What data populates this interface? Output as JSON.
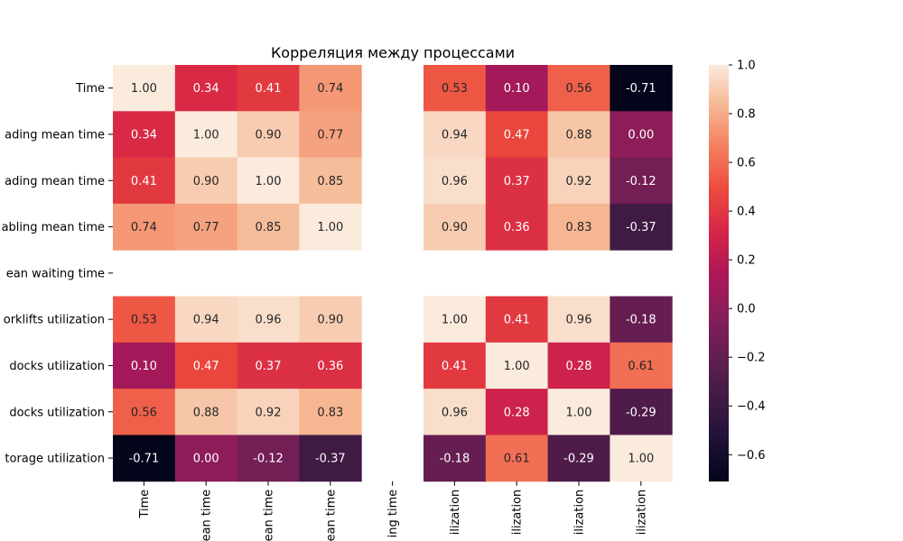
{
  "chart_data": {
    "type": "heatmap",
    "title": "Корреляция между процессами",
    "row_labels": [
      "Time",
      "ading mean time",
      "ading mean time",
      "abling mean time",
      "ean waiting time",
      "orklifts utilization",
      "docks utilization",
      "docks utilization",
      "torage utilization"
    ],
    "col_labels": [
      "Time",
      "ean time",
      "ean time",
      "ean time",
      "ing time",
      "ilization",
      "ilization",
      "ilization",
      "ilization"
    ],
    "values": [
      [
        1.0,
        0.34,
        0.41,
        0.74,
        null,
        0.53,
        0.1,
        0.56,
        -0.71
      ],
      [
        0.34,
        1.0,
        0.9,
        0.77,
        null,
        0.94,
        0.47,
        0.88,
        0.0
      ],
      [
        0.41,
        0.9,
        1.0,
        0.85,
        null,
        0.96,
        0.37,
        0.92,
        -0.12
      ],
      [
        0.74,
        0.77,
        0.85,
        1.0,
        null,
        0.9,
        0.36,
        0.83,
        -0.37
      ],
      [
        null,
        null,
        null,
        null,
        null,
        null,
        null,
        null,
        null
      ],
      [
        0.53,
        0.94,
        0.96,
        0.9,
        null,
        1.0,
        0.41,
        0.96,
        -0.18
      ],
      [
        0.1,
        0.47,
        0.37,
        0.36,
        null,
        0.41,
        1.0,
        0.28,
        0.61
      ],
      [
        0.56,
        0.88,
        0.92,
        0.83,
        null,
        0.96,
        0.28,
        1.0,
        -0.29
      ],
      [
        -0.71,
        0.0,
        -0.12,
        -0.37,
        null,
        -0.18,
        0.61,
        -0.29,
        1.0
      ]
    ],
    "colorbar": {
      "range": [
        -0.71,
        1.0
      ],
      "ticks": [
        1.0,
        0.8,
        0.6,
        0.4,
        0.2,
        0.0,
        -0.2,
        -0.4,
        -0.6
      ],
      "tick_labels": [
        "1.0",
        "0.8",
        "0.6",
        "0.4",
        "0.2",
        "0.0",
        "−0.2",
        "−0.4",
        "−0.6"
      ],
      "colormap": "rocket"
    },
    "value_format": "0.00"
  }
}
